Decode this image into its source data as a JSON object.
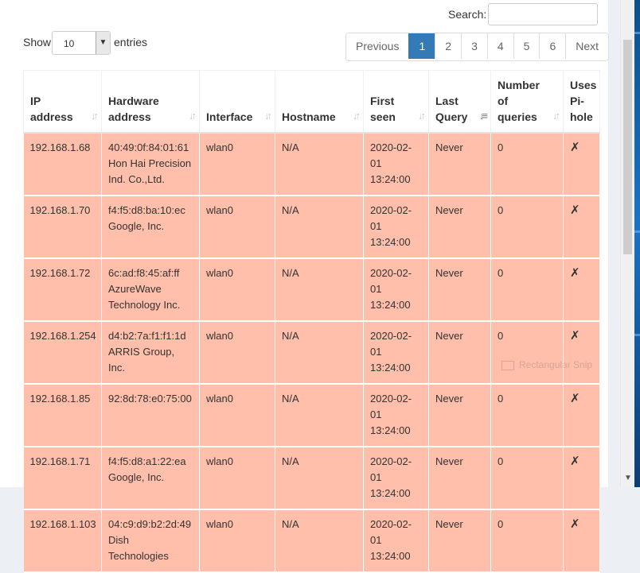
{
  "search": {
    "label": "Search:",
    "value": ""
  },
  "length": {
    "show_label": "Show",
    "value": "10",
    "entries_label": "entries"
  },
  "pagination": {
    "previous": "Previous",
    "pages": [
      "1",
      "2",
      "3",
      "4",
      "5",
      "6"
    ],
    "active": "1",
    "next": "Next"
  },
  "table": {
    "headers": [
      [
        "IP",
        "address"
      ],
      [
        "Hardware",
        "address"
      ],
      [
        "Interface"
      ],
      [
        "Hostname"
      ],
      [
        "First",
        "seen"
      ],
      [
        "Last",
        "Query"
      ],
      [
        "Number",
        "of",
        "queries"
      ],
      [
        "Uses",
        "Pi-",
        "hole"
      ]
    ],
    "rows": [
      {
        "ip": "192.168.1.68",
        "hw": [
          "40:49:0f:84:01:61",
          "Hon Hai Precision",
          "Ind. Co.,Ltd."
        ],
        "iface": "wlan0",
        "host": "N/A",
        "first": [
          "2020-02-01",
          "13:24:00"
        ],
        "last": "Never",
        "count": "0",
        "pihole": "✗"
      },
      {
        "ip": "192.168.1.70",
        "hw": [
          "f4:f5:d8:ba:10:ec",
          "Google, Inc."
        ],
        "iface": "wlan0",
        "host": "N/A",
        "first": [
          "2020-02-01",
          "13:24:00"
        ],
        "last": "Never",
        "count": "0",
        "pihole": "✗"
      },
      {
        "ip": "192.168.1.72",
        "hw": [
          "6c:ad:f8:45:af:ff",
          "AzureWave",
          "Technology Inc."
        ],
        "iface": "wlan0",
        "host": "N/A",
        "first": [
          "2020-02-01",
          "13:24:00"
        ],
        "last": "Never",
        "count": "0",
        "pihole": "✗"
      },
      {
        "ip": "192.168.1.254",
        "hw": [
          "d4:b2:7a:f1:f1:1d",
          "ARRIS Group, Inc."
        ],
        "iface": "wlan0",
        "host": "N/A",
        "first": [
          "2020-02-01",
          "13:24:00"
        ],
        "last": "Never",
        "count": "0",
        "pihole": "✗"
      },
      {
        "ip": "192.168.1.85",
        "hw": [
          "92:8d:78:e0:75:00"
        ],
        "iface": "wlan0",
        "host": "N/A",
        "first": [
          "2020-02-01",
          "13:24:00"
        ],
        "last": "Never",
        "count": "0",
        "pihole": "✗"
      },
      {
        "ip": "192.168.1.71",
        "hw": [
          "f4:f5:d8:a1:22:ea",
          "Google, Inc."
        ],
        "iface": "wlan0",
        "host": "N/A",
        "first": [
          "2020-02-01",
          "13:24:00"
        ],
        "last": "Never",
        "count": "0",
        "pihole": "✗"
      },
      {
        "ip": "192.168.1.103",
        "hw": [
          "04:c9:d9:b2:2d:49",
          "Dish",
          "Technologies"
        ],
        "iface": "wlan0",
        "host": "N/A",
        "first": [
          "2020-02-01",
          "13:24:00"
        ],
        "last": "Never",
        "count": "0",
        "pihole": "✗"
      }
    ]
  },
  "overlay": {
    "snip_label": "Rectangular Snip"
  },
  "colors": {
    "row_bg": "#ffbfaa",
    "accent": "#337ab7"
  }
}
